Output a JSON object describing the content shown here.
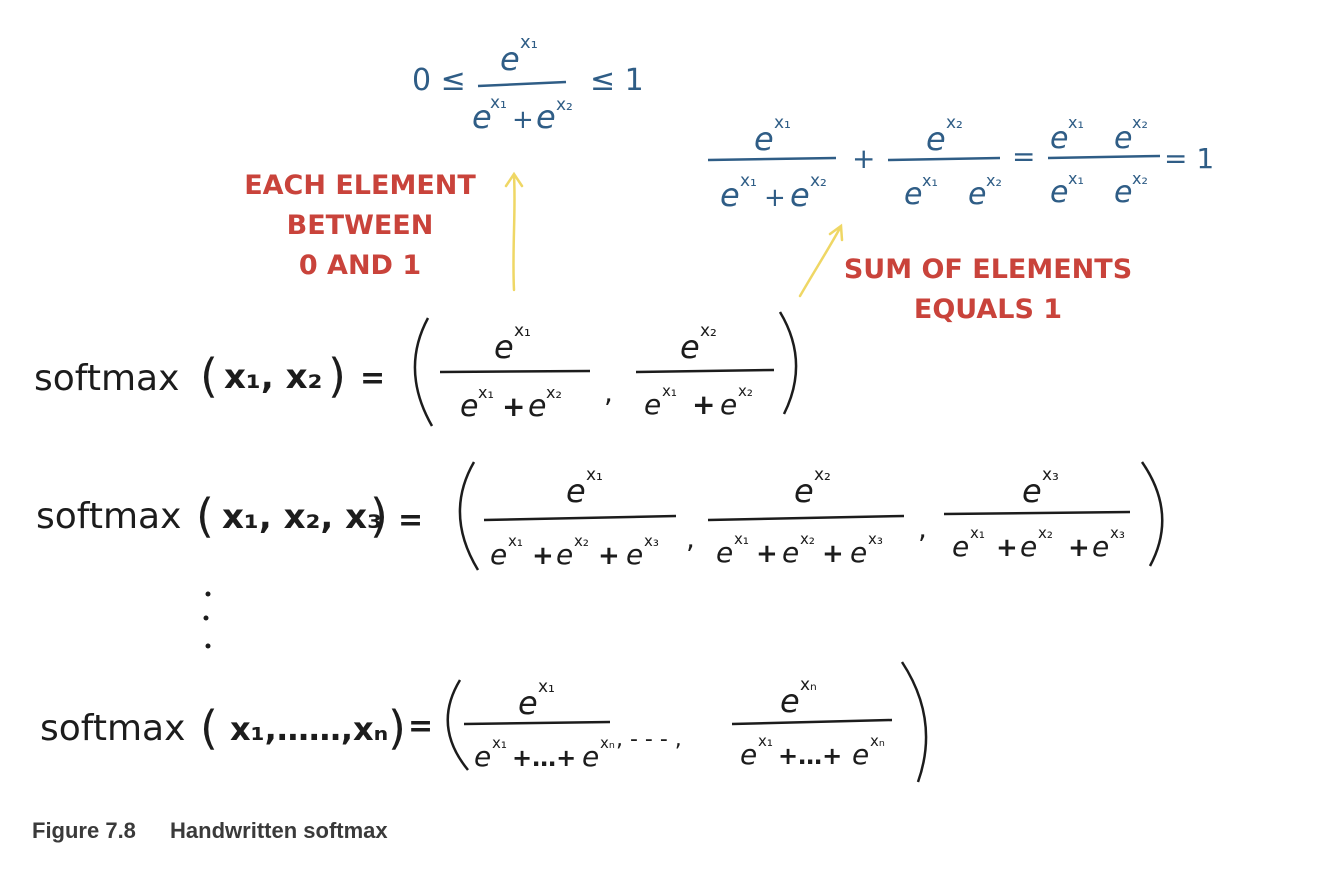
{
  "colors": {
    "ink": "#1c1c1c",
    "blue": "#2f5d86",
    "red": "#c9433b",
    "arrow": "#efd765"
  },
  "annotations": {
    "each_element": [
      "EACH ELEMENT",
      "BETWEEN",
      "0 AND 1"
    ],
    "sum_elements": [
      "SUM OF ELEMENTS",
      "EQUALS 1"
    ]
  },
  "top_formula": {
    "left": "0 ≤",
    "right": "≤ 1",
    "num": "e",
    "num_sup": "x₁",
    "den": [
      "e",
      "x₁",
      "+",
      "e",
      "x₂"
    ]
  },
  "sum_formula": {
    "plus": "+",
    "eq": "=",
    "result": "= 1"
  },
  "rows": {
    "r1": {
      "fn": "softmax",
      "args": "x₁, x₂",
      "eq": "="
    },
    "r2": {
      "fn": "softmax",
      "args": "x₁, x₂, x₃",
      "eq": "="
    },
    "r3": {
      "fn": "softmax",
      "args": "x₁,……,xₙ",
      "eq": "=",
      "ellipsis": ", - - - ,"
    },
    "vdots": "⋮"
  },
  "caption": {
    "number": "Figure 7.8",
    "title": "Handwritten softmax"
  }
}
